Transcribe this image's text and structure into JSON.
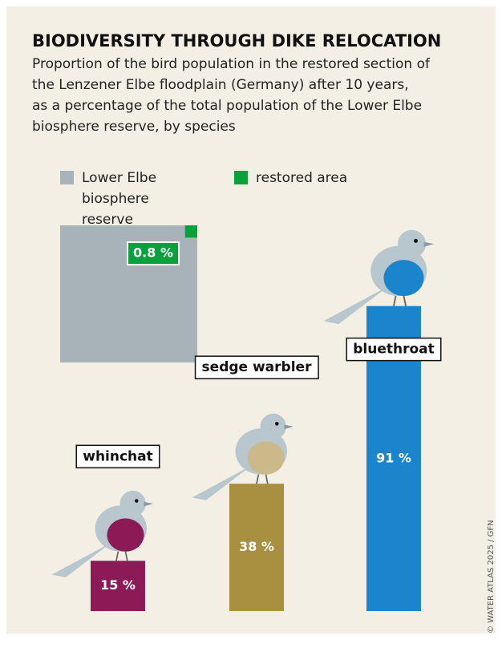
{
  "chart_data": {
    "type": "bar",
    "title": "BIODIVERSITY THROUGH DIKE RELOCATION",
    "subtitle": [
      "Proportion of the bird population in the restored section of",
      "the Lenzener Elbe floodplain (Germany) after 10 years,",
      "as a percentage of the total population of the Lower Elbe",
      "biosphere reserve, by species"
    ],
    "share": {
      "total_name": "Lower Elbe biosphere reserve",
      "total_color": "#a7b3b9",
      "part_name": "restored area",
      "part_color": "#0aa03c",
      "value": 0.8,
      "value_label": "0.8 %"
    },
    "categories": [
      "whinchat",
      "sedge warbler",
      "bluethroat"
    ],
    "values": [
      15,
      38,
      91
    ],
    "value_labels": [
      "15 %",
      "38 %",
      "91 %"
    ],
    "colors": [
      "#8b1a57",
      "#a89040",
      "#1a85cc"
    ],
    "credit": "© WATER ATLAS 2025 / GFN"
  }
}
